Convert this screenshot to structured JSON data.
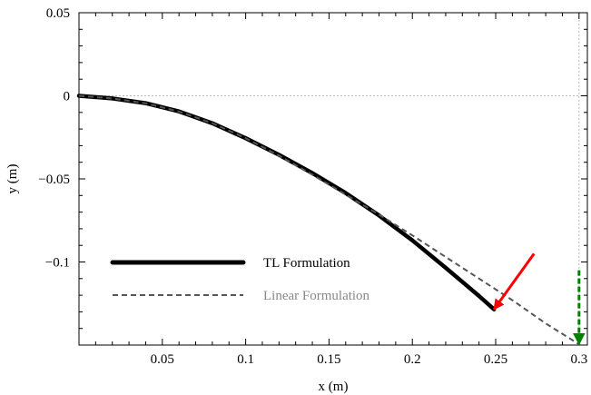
{
  "chart_data": {
    "type": "line",
    "title": "",
    "xlabel": "x (m)",
    "ylabel": "y (m)",
    "xlim": [
      0,
      0.305
    ],
    "ylim": [
      -0.15,
      0.05
    ],
    "grid": false,
    "legend_position": "bottom-left",
    "x_ticks": [
      0.05,
      0.1,
      0.15,
      0.2,
      0.25,
      0.3
    ],
    "x_tick_labels": [
      "0.05",
      "0.1",
      "0.15",
      "0.2",
      "0.25",
      "0.3"
    ],
    "y_ticks": [
      0.05,
      0,
      -0.05,
      -0.1
    ],
    "y_tick_labels": [
      "0.05",
      "0",
      "−0.05",
      "−0.1"
    ],
    "reference_lines": {
      "horizontal_y": 0,
      "vertical_x": 0.3
    },
    "series": [
      {
        "name": "TL Formulation",
        "color": "#000000",
        "style": "solid",
        "x": [
          0,
          0.02,
          0.04,
          0.06,
          0.08,
          0.1,
          0.12,
          0.14,
          0.16,
          0.18,
          0.2,
          0.22,
          0.24,
          0.249
        ],
        "y": [
          0,
          -0.0016,
          -0.0044,
          -0.0094,
          -0.0165,
          -0.0255,
          -0.0355,
          -0.0465,
          -0.0585,
          -0.072,
          -0.087,
          -0.1035,
          -0.1205,
          -0.1285
        ]
      },
      {
        "name": "Linear Formulation",
        "color": "#555555",
        "style": "dashed",
        "x": [
          0,
          0.02,
          0.04,
          0.06,
          0.08,
          0.1,
          0.12,
          0.14,
          0.16,
          0.18,
          0.2,
          0.22,
          0.24,
          0.26,
          0.28,
          0.3
        ],
        "y": [
          0,
          -0.0016,
          -0.0045,
          -0.0095,
          -0.0165,
          -0.0255,
          -0.036,
          -0.0475,
          -0.0595,
          -0.0715,
          -0.084,
          -0.097,
          -0.11,
          -0.123,
          -0.137,
          -0.1495
        ]
      }
    ],
    "annotations": [
      {
        "type": "arrow",
        "color": "#ff0000",
        "style": "solid",
        "from": [
          0.273,
          -0.095
        ],
        "to": [
          0.249,
          -0.1285
        ]
      },
      {
        "type": "arrow",
        "color": "#008000",
        "style": "dashed",
        "from": [
          0.3,
          -0.105
        ],
        "to": [
          0.3,
          -0.1495
        ]
      }
    ]
  }
}
